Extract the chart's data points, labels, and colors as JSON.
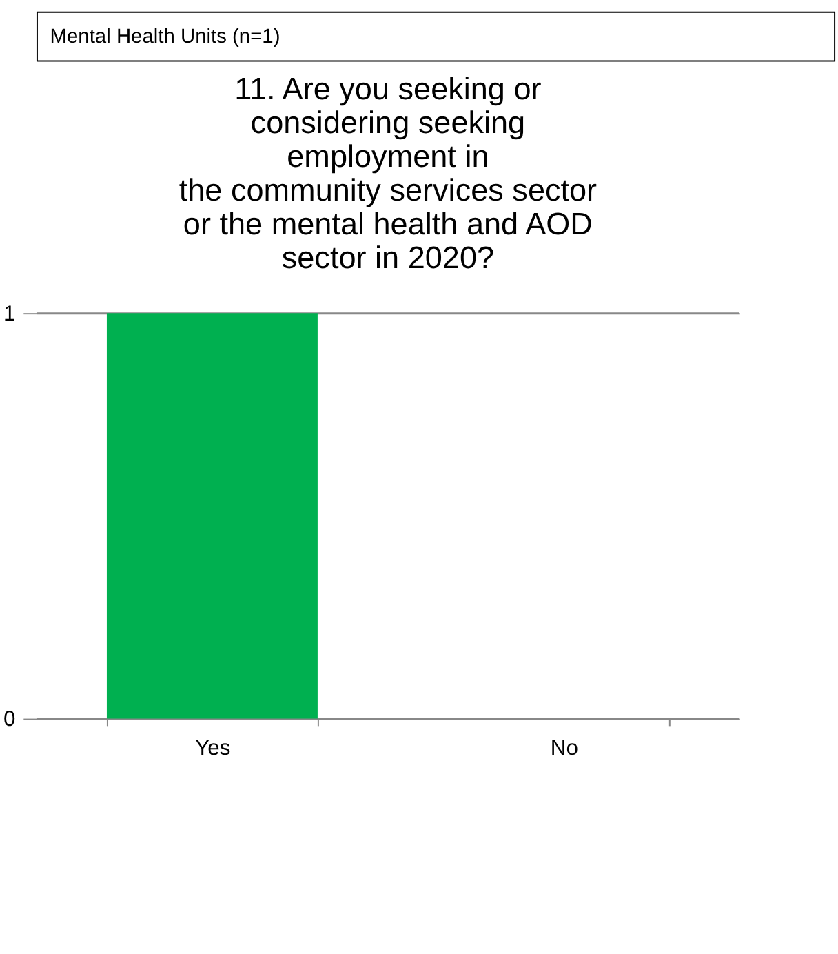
{
  "chart_data": {
    "type": "bar",
    "title": "11. Are you seeking or\nconsidering seeking\nemployment in\nthe community services sector\nor the mental health and AOD\nsector in 2020?",
    "annotations": [
      "Mental Health Units (n=1)"
    ],
    "categories": [
      "Yes",
      "No"
    ],
    "values": [
      1,
      0
    ],
    "color": "#00b050",
    "ylim": [
      0,
      1
    ],
    "yticks": [
      0,
      1
    ],
    "grid": "y"
  }
}
